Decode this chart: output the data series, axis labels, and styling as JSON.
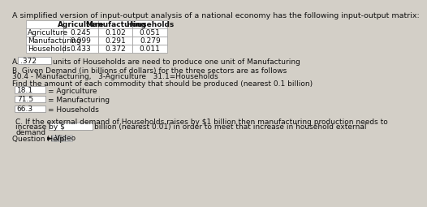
{
  "title": "A simplified version of input-output analysis of a national economy has the following input-output matrix:",
  "table_col_labels": [
    "Agriculture",
    "Manufacturing",
    "Households"
  ],
  "table_row_labels": [
    "Agriculture",
    "Manufacturing",
    "Households"
  ],
  "table_data": [
    [
      "0.245",
      "0.102",
      "0.051"
    ],
    [
      "0.099",
      "0.291",
      "0.279"
    ],
    [
      "0.433",
      "0.372",
      "0.011"
    ]
  ],
  "part_a_label": "A.",
  "part_a_box_val": ".372",
  "part_a_suffix": "units of Households are need to produce one unit of Manufacturing",
  "part_b_line1": "B. Given Demand (in billions of dollars) for the three sectors are as follows",
  "part_b_line2": "30.4 - Manufacturing,   3-Agriculture   31.1=Households",
  "find_text": "Find the amount of each commodity that should be produced (nearest 0.1 billion)",
  "answers": [
    {
      "val": "18.1",
      "label": "= Agriculture"
    },
    {
      "val": "71.5",
      "label": "= Manufacturing"
    },
    {
      "val": "66.3",
      "label": "= Households"
    }
  ],
  "part_c_line1": "C. If the external demand of Households raises by $1 billion then manufacturing production needs to",
  "part_c_prefix": "increase by $",
  "part_c_suffix": "billion (nearest 0.01) in order to meet that increase in household external",
  "part_c_last": "demand",
  "help_label": "Question Help:",
  "video_label": "► Video",
  "bg_color": "#d3cfc7",
  "white": "#ffffff",
  "border_color": "#999999",
  "text_color": "#111111",
  "fs_title": 6.8,
  "fs_body": 6.5,
  "fs_table": 6.5
}
